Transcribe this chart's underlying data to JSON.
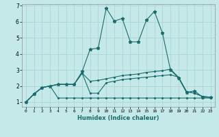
{
  "xlabel": "Humidex (Indice chaleur)",
  "bg_color": "#c5e8e8",
  "grid_color": "#aad4d4",
  "line_color": "#1a6b6b",
  "xlim": [
    -0.5,
    23.5
  ],
  "ylim": [
    0.7,
    7.1
  ],
  "xticks": [
    0,
    1,
    2,
    3,
    4,
    5,
    6,
    7,
    8,
    9,
    10,
    11,
    12,
    13,
    14,
    15,
    16,
    17,
    18,
    19,
    20,
    21,
    22,
    23
  ],
  "yticks": [
    1,
    2,
    3,
    4,
    5,
    6,
    7
  ],
  "line1_x": [
    0,
    1,
    2,
    3,
    4,
    5,
    6,
    7,
    8,
    9,
    10,
    11,
    12,
    13,
    14,
    15,
    16,
    17,
    18,
    19,
    20,
    21,
    22,
    23
  ],
  "line1_y": [
    1.0,
    1.5,
    1.9,
    2.0,
    2.1,
    2.1,
    2.1,
    2.9,
    4.3,
    4.35,
    6.85,
    6.05,
    6.2,
    4.75,
    4.75,
    6.1,
    6.65,
    5.3,
    3.0,
    2.5,
    1.6,
    1.7,
    1.3,
    1.3
  ],
  "line2_x": [
    0,
    1,
    2,
    3,
    4,
    5,
    6,
    7,
    8,
    9,
    10,
    11,
    12,
    13,
    14,
    15,
    16,
    17,
    18,
    19,
    20,
    21,
    22,
    23
  ],
  "line2_y": [
    1.0,
    1.5,
    1.9,
    2.0,
    2.1,
    2.1,
    2.1,
    2.8,
    2.3,
    2.35,
    2.45,
    2.55,
    2.65,
    2.7,
    2.75,
    2.85,
    2.9,
    2.95,
    3.05,
    2.55,
    1.65,
    1.55,
    1.35,
    1.3
  ],
  "line3_x": [
    0,
    1,
    2,
    3,
    4,
    5,
    6,
    7,
    8,
    9,
    10,
    11,
    12,
    13,
    14,
    15,
    16,
    17,
    18,
    19,
    20,
    21,
    22,
    23
  ],
  "line3_y": [
    1.0,
    1.5,
    1.9,
    2.0,
    2.1,
    2.1,
    2.1,
    2.8,
    1.55,
    1.55,
    2.2,
    2.3,
    2.4,
    2.45,
    2.5,
    2.55,
    2.6,
    2.65,
    2.7,
    2.55,
    1.65,
    1.55,
    1.35,
    1.3
  ],
  "line4_x": [
    0,
    1,
    2,
    3,
    4,
    5,
    6,
    7,
    8,
    9,
    10,
    11,
    12,
    13,
    14,
    15,
    16,
    17,
    18,
    19,
    20,
    21,
    22,
    23
  ],
  "line4_y": [
    1.0,
    1.5,
    1.9,
    2.0,
    1.25,
    1.25,
    1.25,
    1.25,
    1.25,
    1.25,
    1.25,
    1.25,
    1.25,
    1.25,
    1.25,
    1.25,
    1.25,
    1.25,
    1.25,
    1.25,
    1.25,
    1.25,
    1.25,
    1.25
  ]
}
